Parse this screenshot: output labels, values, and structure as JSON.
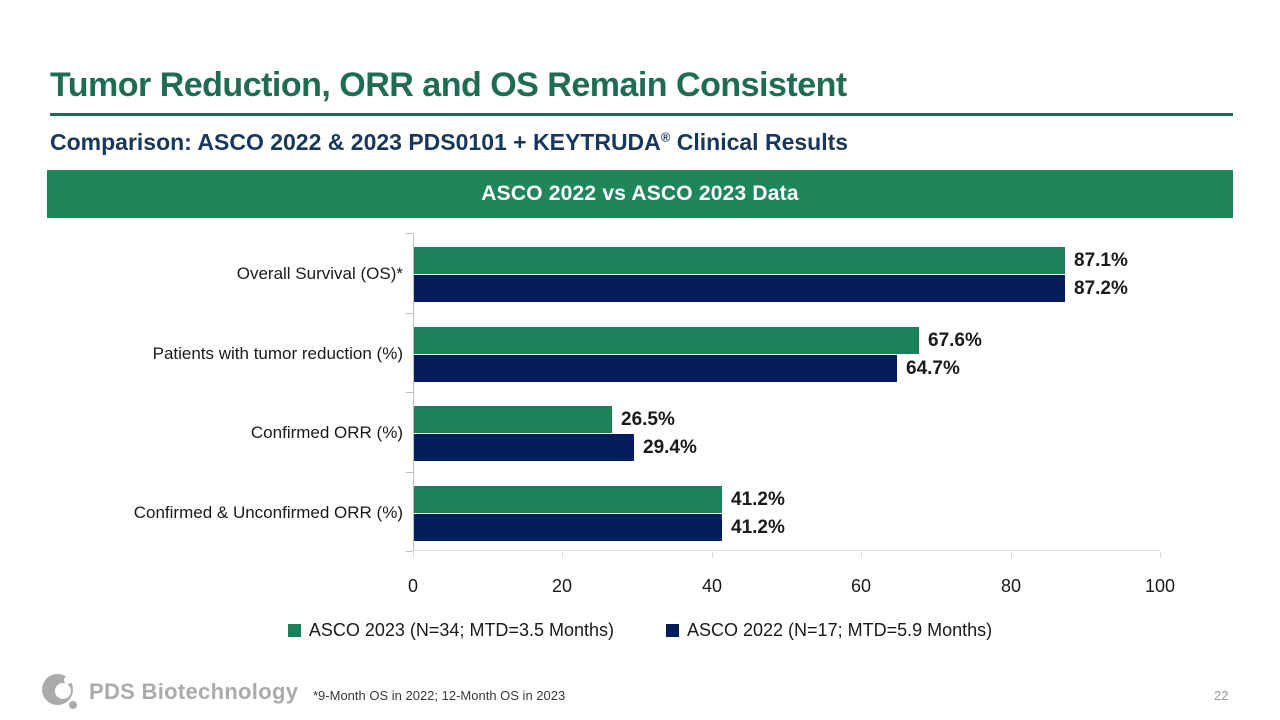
{
  "slide": {
    "title": "Tumor Reduction, ORR and OS Remain Consistent",
    "subtitle_prefix": "Comparison: ASCO 2022 & 2023 PDS0101 + KEYTRUDA",
    "subtitle_reg_mark": "®",
    "subtitle_suffix": " Clinical Results",
    "banner_title": "ASCO 2022 vs ASCO 2023 Data",
    "footnote": "*9-Month OS in 2022; 12-Month OS in 2023",
    "page_number": "22",
    "logo_text": "PDS Biotechnology"
  },
  "colors": {
    "title_green": "#1F6C55",
    "subtitle_navy": "#17375E",
    "banner_green": "#1E8659",
    "bar_green": "#1B8159",
    "bar_navy": "#041E5B",
    "axis_line": "#BFBFBF",
    "axis_line_bottom": "#D9D9D9",
    "label_black": "#1A1A1A",
    "logo_gray": "#ABABAB"
  },
  "chart_data": {
    "type": "bar",
    "orientation": "horizontal",
    "title": "ASCO 2022 vs ASCO 2023 Data",
    "categories": [
      "Overall Survival (OS)*",
      "Patients with tumor reduction (%)",
      "Confirmed ORR (%)",
      "Confirmed & Unconfirmed ORR (%)"
    ],
    "series": [
      {
        "name": "ASCO 2023 (N=34; MTD=3.5 Months)",
        "color": "#1B8159",
        "values": [
          87.1,
          67.6,
          26.5,
          41.2
        ],
        "labels": [
          "87.1%",
          "67.6%",
          "26.5%",
          "41.2%"
        ]
      },
      {
        "name": "ASCO 2022 (N=17; MTD=5.9 Months)",
        "color": "#041E5B",
        "values": [
          87.2,
          64.7,
          29.4,
          41.2
        ],
        "labels": [
          "87.2%",
          "64.7%",
          "29.4%",
          "41.2%"
        ]
      }
    ],
    "xlim": [
      0,
      100
    ],
    "x_ticks": [
      0,
      20,
      40,
      60,
      80,
      100
    ],
    "grid": false,
    "legend_position": "bottom"
  }
}
